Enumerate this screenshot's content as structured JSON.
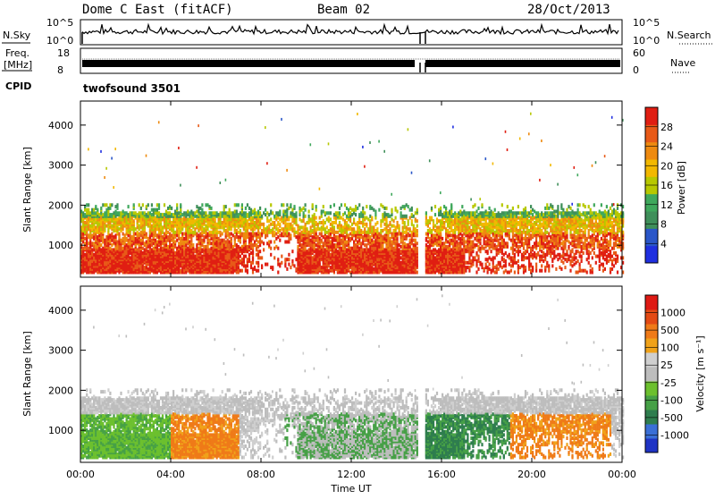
{
  "header": {
    "station": "Dome C East (fitACF)",
    "beam": "Beam 02",
    "date": "28/Oct/2013"
  },
  "top_panels": {
    "nsky_label": "N.Sky",
    "nsky_ticks": [
      "10^5",
      "10^0"
    ],
    "nsearch_label": "N.Search",
    "nsearch_ticks": [
      "10^5",
      "10^0"
    ],
    "freq_label_1": "Freq.",
    "freq_label_2": "[MHz]",
    "freq_tick_top": "18",
    "freq_tick_bottom": "8",
    "nave_label": "Nave",
    "nave_tick_top": "60",
    "nave_tick_bottom": "0",
    "cpid_label": "CPID",
    "cpid_value": "twofsound 3501"
  },
  "colors": {
    "power": [
      "#1f2fe0",
      "#2a56c8",
      "#3f8f5a",
      "#3fa85c",
      "#b7c800",
      "#f2b800",
      "#ee8a10",
      "#e85a18",
      "#e01e12"
    ],
    "velocity": [
      "#1f33c4",
      "#3a6fd6",
      "#2e7d4e",
      "#46a046",
      "#6cc02e",
      "#bdbdbd",
      "#cfcfcf",
      "#f0a21a",
      "#ef7a18",
      "#e34a14",
      "#de1a14"
    ]
  },
  "chart_data": [
    {
      "type": "heatmap",
      "name": "power",
      "ylabel": "Slant Range [km]",
      "xlabel": "Time UT",
      "ylim": [
        200,
        4600
      ],
      "yticks": [
        "1000",
        "2000",
        "3000",
        "4000"
      ],
      "xticks": [
        "00:00",
        "04:00",
        "08:00",
        "12:00",
        "16:00",
        "20:00",
        "00:00"
      ],
      "colorbar": {
        "label": "Power [dB]",
        "ticks": [
          "4",
          "8",
          "12",
          "16",
          "20",
          "24",
          "28"
        ]
      }
    },
    {
      "type": "heatmap",
      "name": "velocity",
      "ylabel": "Slant Range [km]",
      "xlabel": "Time UT",
      "ylim": [
        200,
        4600
      ],
      "yticks": [
        "1000",
        "2000",
        "3000",
        "4000"
      ],
      "xticks": [
        "00:00",
        "04:00",
        "08:00",
        "12:00",
        "16:00",
        "20:00",
        "00:00"
      ],
      "colorbar": {
        "label": "Velocity [m s⁻¹]",
        "ticks": [
          "1000",
          "500",
          "100",
          "25",
          "-25",
          "-100",
          "-500",
          "-1000"
        ]
      }
    }
  ],
  "x_axis_title": "Time UT"
}
